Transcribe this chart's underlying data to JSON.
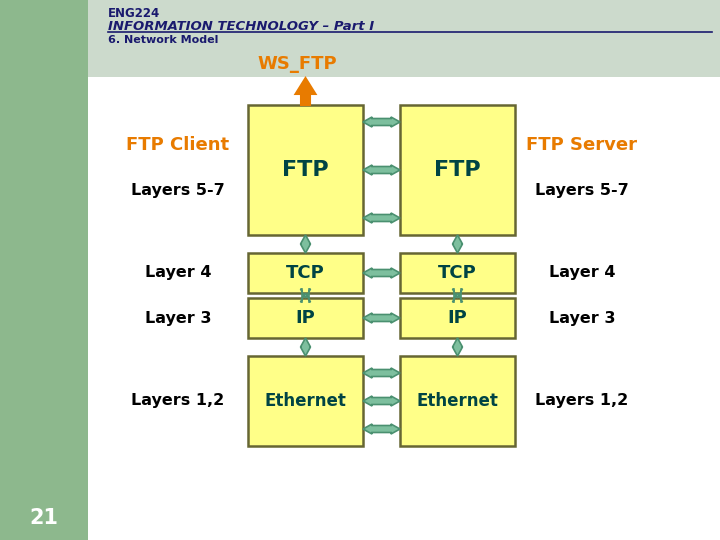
{
  "title1": "ENG224",
  "title2": "INFORMATION TECHNOLOGY – Part I",
  "subtitle": "6. Network Model",
  "ws_ftp_label": "WS_FTP",
  "left_label": "FTP Client",
  "right_label": "FTP Server",
  "layers_left": [
    "Layers 5-7",
    "Layer 4",
    "Layer 3",
    "Layers 1,2"
  ],
  "layers_right": [
    "Layers 5-7",
    "Layer 4",
    "Layer 3",
    "Layers 1,2"
  ],
  "box_labels_left": [
    "FTP",
    "TCP",
    "IP",
    "Ethernet"
  ],
  "box_labels_right": [
    "FTP",
    "TCP",
    "IP",
    "Ethernet"
  ],
  "bg_color": "#ffffff",
  "left_panel_color": "#8db88d",
  "box_fill": "#ffff88",
  "box_edge": "#666633",
  "box_text_color": "#004444",
  "arrow_fill": "#7dbf9e",
  "arrow_edge": "#4a9070",
  "orange_color": "#e87b00",
  "dark_navy": "#1a1a6e",
  "header_bg": "#ccdacc",
  "page_num": "21",
  "label_color": "#000000"
}
